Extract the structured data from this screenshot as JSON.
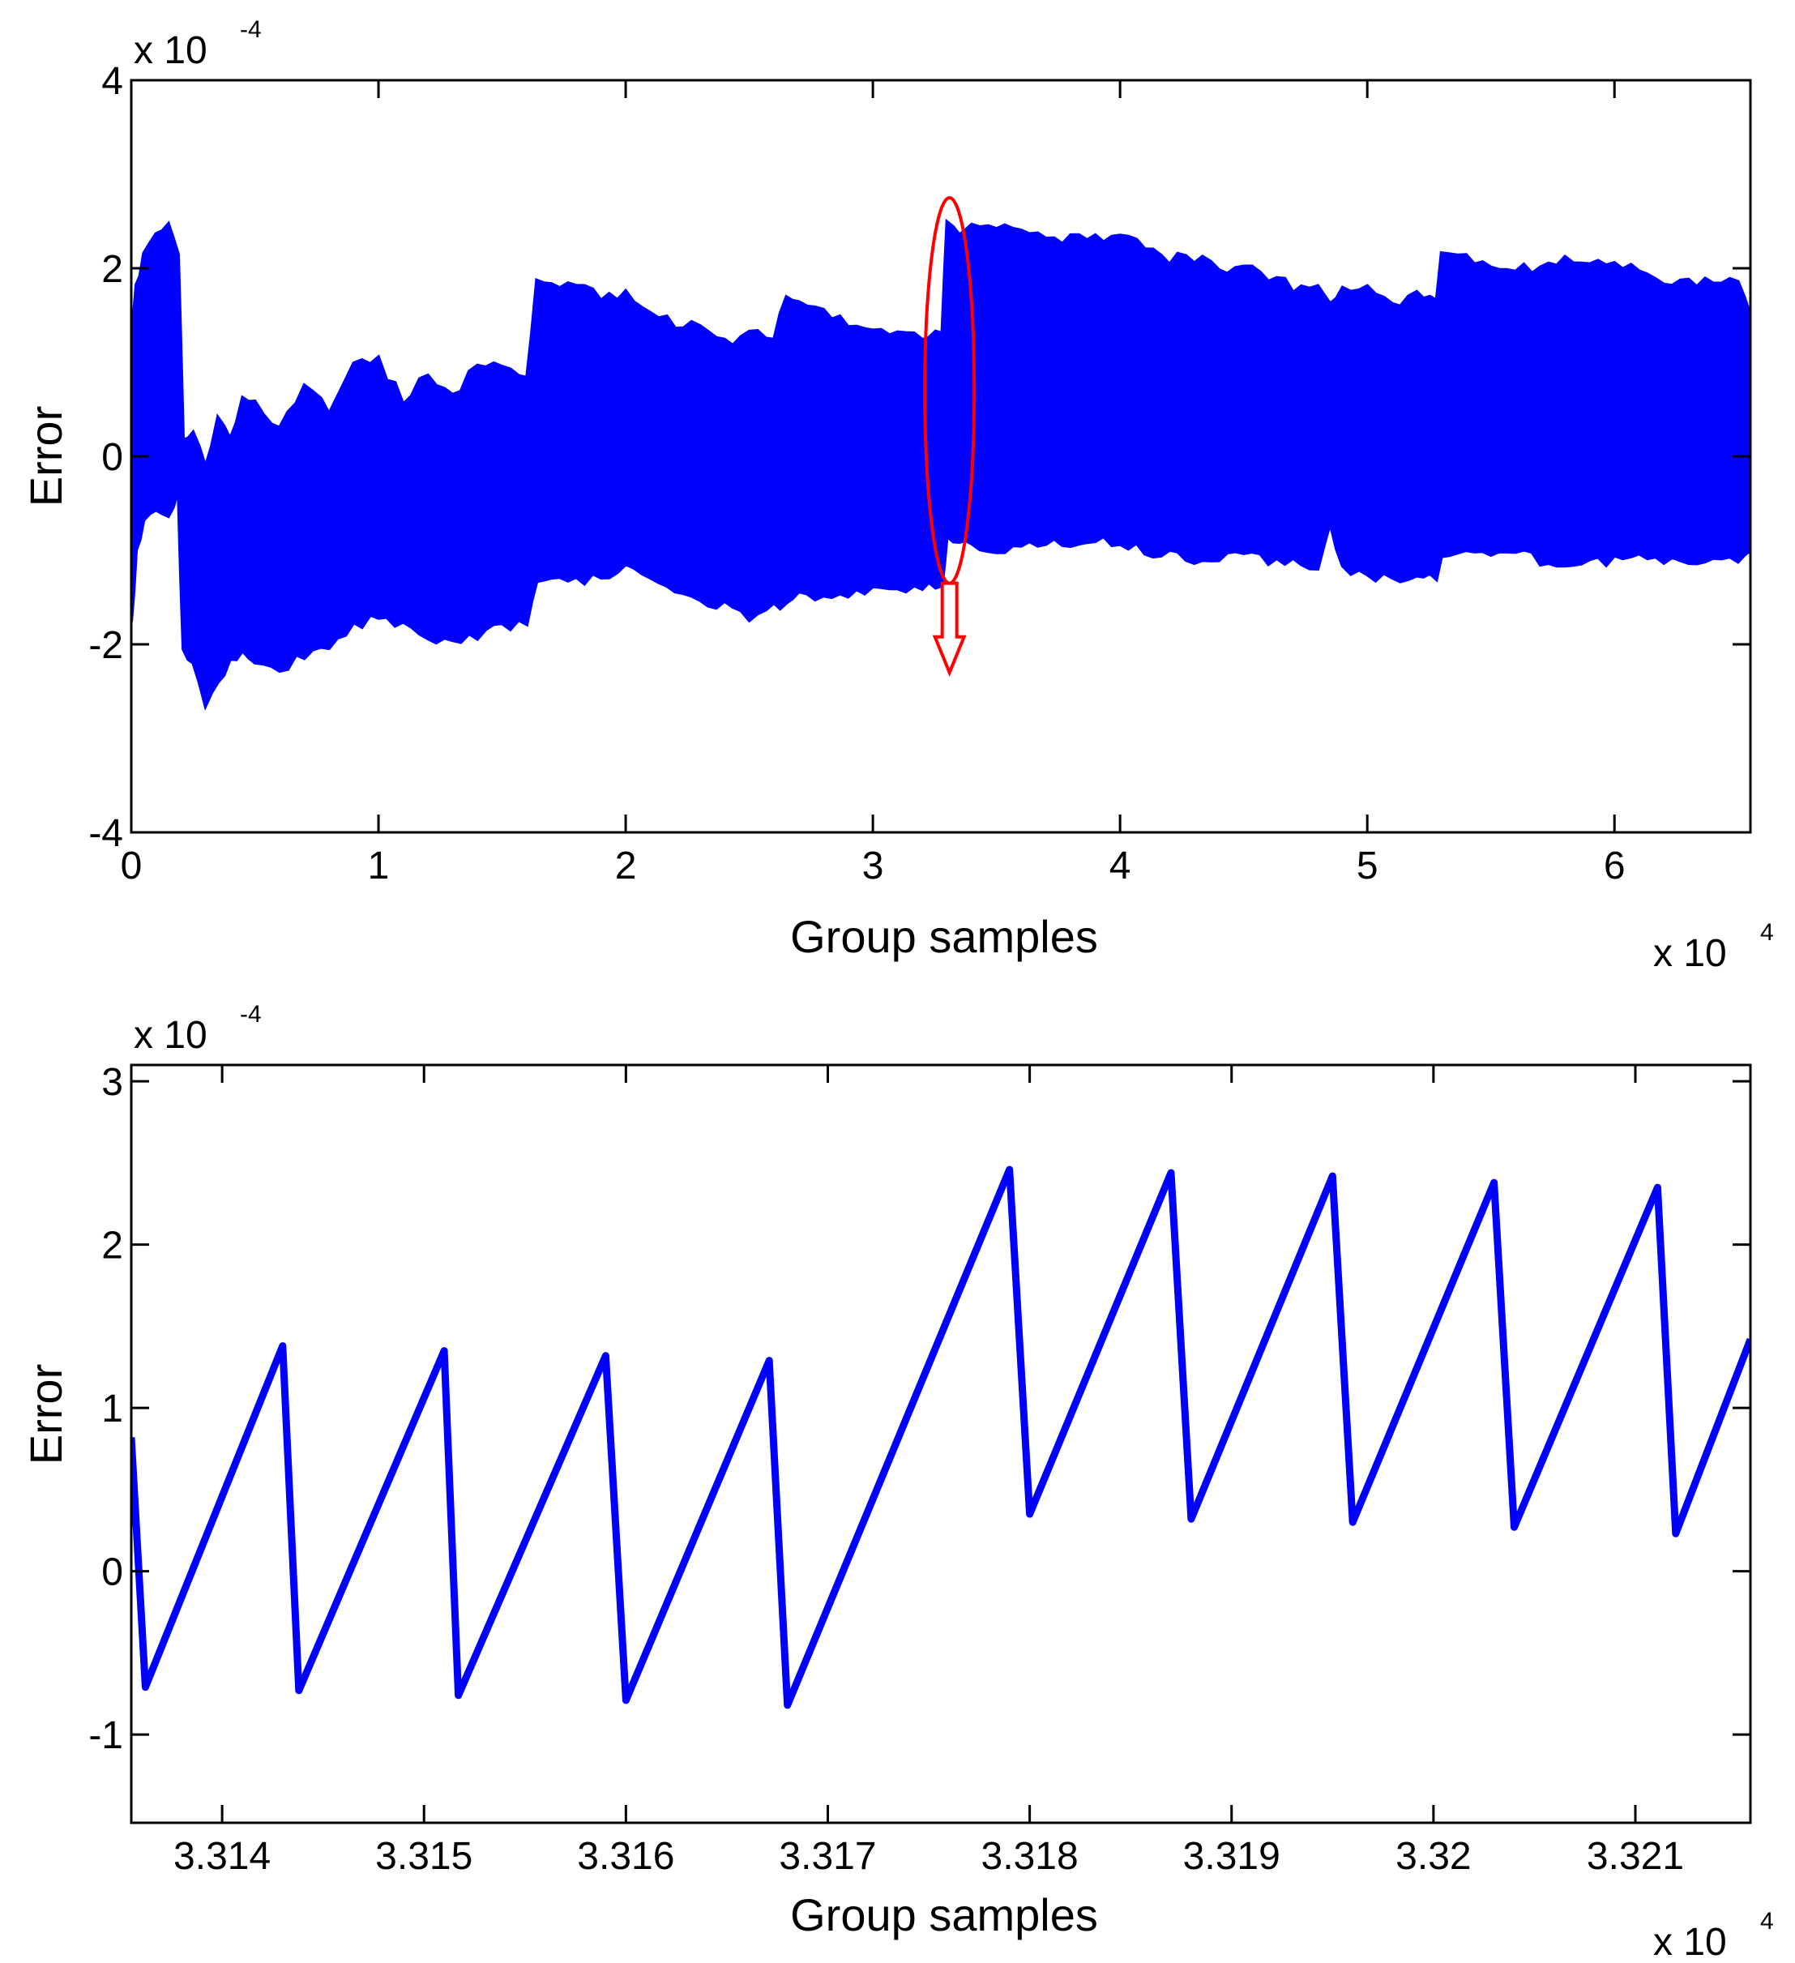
{
  "chart_data": [
    {
      "type": "area",
      "title": "",
      "xlabel": "Group samples",
      "ylabel": "Error",
      "x_multiplier": "x 10",
      "x_multiplier_exp": "4",
      "y_multiplier": "x 10",
      "y_multiplier_exp": "-4",
      "xlim": [
        0,
        6.55
      ],
      "ylim": [
        -4,
        4
      ],
      "xticks": [
        0,
        1,
        2,
        3,
        4,
        5,
        6
      ],
      "xtick_labels": [
        "0",
        "1",
        "2",
        "3",
        "4",
        "5",
        "6"
      ],
      "yticks": [
        -4,
        -2,
        0,
        2,
        4
      ],
      "ytick_labels": [
        "-4",
        "-2",
        "0",
        "2",
        "4"
      ],
      "series_color": "#0000ff",
      "envelope": {
        "x": [
          0.0,
          0.02,
          0.05,
          0.1,
          0.15,
          0.19,
          0.21,
          0.25,
          0.3,
          0.35,
          0.4,
          0.45,
          0.5,
          0.6,
          0.7,
          0.8,
          0.9,
          1.0,
          1.1,
          1.2,
          1.3,
          1.4,
          1.5,
          1.6,
          1.64,
          1.7,
          1.8,
          1.9,
          2.0,
          2.1,
          2.2,
          2.3,
          2.4,
          2.5,
          2.6,
          2.65,
          2.7,
          2.8,
          2.9,
          3.0,
          3.1,
          3.2,
          3.28,
          3.3,
          3.35,
          3.4,
          3.5,
          3.6,
          3.7,
          3.8,
          3.9,
          4.0,
          4.1,
          4.2,
          4.3,
          4.4,
          4.5,
          4.6,
          4.7,
          4.8,
          4.85,
          4.9,
          5.0,
          5.1,
          5.2,
          5.28,
          5.3,
          5.4,
          5.5,
          5.6,
          5.7,
          5.8,
          5.9,
          6.0,
          6.1,
          6.2,
          6.3,
          6.4,
          6.5,
          6.55
        ],
        "upper": [
          1.2,
          1.8,
          2.1,
          2.4,
          2.5,
          2.2,
          0.2,
          0.3,
          -0.1,
          0.4,
          0.2,
          0.6,
          0.6,
          0.3,
          0.7,
          0.5,
          1.0,
          1.0,
          0.6,
          0.9,
          0.6,
          1.0,
          1.0,
          0.8,
          1.85,
          1.8,
          1.8,
          1.7,
          1.7,
          1.5,
          1.4,
          1.4,
          1.2,
          1.3,
          1.3,
          1.65,
          1.6,
          1.6,
          1.35,
          1.3,
          1.3,
          1.3,
          1.3,
          2.5,
          2.4,
          2.5,
          2.4,
          2.4,
          2.35,
          2.3,
          2.3,
          2.4,
          2.2,
          2.1,
          2.1,
          2.0,
          2.0,
          1.9,
          1.8,
          1.8,
          1.6,
          1.8,
          1.8,
          1.6,
          1.7,
          1.7,
          2.2,
          2.1,
          2.0,
          2.0,
          2.0,
          2.1,
          2.1,
          2.05,
          2.0,
          1.85,
          1.85,
          1.85,
          1.85,
          1.5
        ],
        "lower": [
          -1.8,
          -1.0,
          -0.7,
          -0.6,
          -0.6,
          -0.4,
          -2.1,
          -2.2,
          -2.6,
          -2.4,
          -2.2,
          -2.1,
          -2.2,
          -2.3,
          -2.1,
          -2.0,
          -1.8,
          -1.7,
          -1.8,
          -1.9,
          -2.0,
          -1.9,
          -1.8,
          -1.75,
          -1.3,
          -1.3,
          -1.3,
          -1.3,
          -1.2,
          -1.3,
          -1.4,
          -1.5,
          -1.6,
          -1.7,
          -1.6,
          -1.6,
          -1.5,
          -1.5,
          -1.45,
          -1.4,
          -1.45,
          -1.4,
          -1.4,
          -0.9,
          -0.9,
          -0.9,
          -1.0,
          -0.9,
          -0.9,
          -0.95,
          -0.9,
          -0.9,
          -1.0,
          -1.05,
          -1.1,
          -1.1,
          -1.0,
          -1.1,
          -1.1,
          -1.2,
          -0.7,
          -1.2,
          -1.3,
          -1.3,
          -1.3,
          -1.3,
          -1.1,
          -1.0,
          -1.0,
          -1.0,
          -1.1,
          -1.2,
          -1.1,
          -1.1,
          -1.0,
          -1.1,
          -1.1,
          -1.1,
          -1.1,
          -1.0
        ]
      },
      "annotation": {
        "shape": "ellipse",
        "color": "#ff0000",
        "center_x": 3.31,
        "center_y": 0.7,
        "radius_x": 0.1,
        "radius_y": 2.05,
        "arrow_from_y": -1.35,
        "arrow_to_y": -2.3
      }
    },
    {
      "type": "line",
      "title": "",
      "xlabel": "Group samples",
      "ylabel": "Error",
      "x_multiplier": "x 10",
      "x_multiplier_exp": "4",
      "y_multiplier": "x 10",
      "y_multiplier_exp": "-4",
      "xlim": [
        3.31355,
        3.32157
      ],
      "ylim": [
        -1.54,
        3.1
      ],
      "xticks": [
        3.314,
        3.315,
        3.316,
        3.317,
        3.318,
        3.319,
        3.32,
        3.321
      ],
      "xtick_labels": [
        "3.314",
        "3.315",
        "3.316",
        "3.317",
        "3.318",
        "3.319",
        "3.32",
        "3.321"
      ],
      "yticks": [
        -1,
        0,
        1,
        2,
        3
      ],
      "ytick_labels": [
        "-1",
        "0",
        "1",
        "2",
        "3"
      ],
      "series": [
        {
          "name": "Error",
          "color": "#0000ff",
          "x": [
            3.31355,
            3.31362,
            3.3143,
            3.31438,
            3.3151,
            3.31517,
            3.3159,
            3.316,
            3.31671,
            3.3168,
            3.3179,
            3.318,
            3.3187,
            3.3188,
            3.3195,
            3.3196,
            3.3203,
            3.3204,
            3.32111,
            3.3212,
            3.32157
          ],
          "y": [
            0.82,
            -0.71,
            1.38,
            -0.73,
            1.35,
            -0.76,
            1.32,
            -0.79,
            1.29,
            -0.82,
            2.46,
            0.35,
            2.44,
            0.32,
            2.42,
            0.3,
            2.38,
            0.27,
            2.35,
            0.23,
            1.42
          ]
        }
      ]
    }
  ]
}
